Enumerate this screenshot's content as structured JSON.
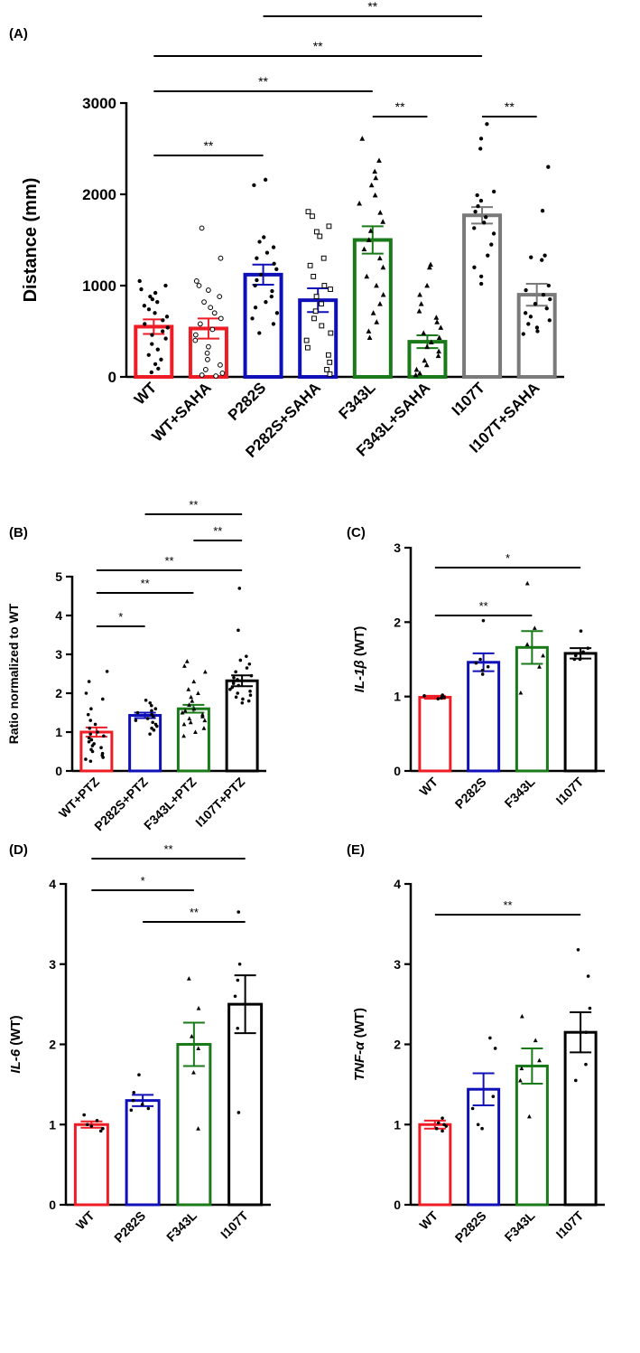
{
  "figure": {
    "panels": [
      {
        "id": "A",
        "label": "(A)"
      },
      {
        "id": "B",
        "label": "(B)"
      },
      {
        "id": "C",
        "label": "(C)"
      },
      {
        "id": "D",
        "label": "(D)"
      },
      {
        "id": "E",
        "label": "(E)"
      }
    ]
  },
  "colors": {
    "red": "#ee1c25",
    "blue": "#1010b8",
    "green": "#1a7a1a",
    "gray": "#7a7a7a",
    "black": "#000000"
  },
  "chart_data": [
    {
      "panel": "(A)",
      "type": "bar",
      "ylabel": "Distance (mm)",
      "ylim": [
        0,
        3000
      ],
      "yticks": [
        0,
        1000,
        2000,
        3000
      ],
      "categories": [
        "WT",
        "WT+SAHA",
        "P282S",
        "P282S+SAHA",
        "F343L",
        "F343L+SAHA",
        "I107T",
        "I107T+SAHA"
      ],
      "values": [
        550,
        530,
        1120,
        840,
        1500,
        385,
        1770,
        900
      ],
      "errors": [
        80,
        110,
        110,
        130,
        150,
        70,
        90,
        120
      ],
      "bar_colors": [
        "#ee1c25",
        "#ee1c25",
        "#1010b8",
        "#1010b8",
        "#1a7a1a",
        "#1a7a1a",
        "#7a7a7a",
        "#7a7a7a"
      ],
      "point_markers": [
        "circle-filled",
        "circle-open",
        "circle-filled",
        "square-open",
        "triangle",
        "triangle",
        "circle-filled",
        "circle-filled"
      ],
      "points": [
        [
          1050,
          1000,
          960,
          920,
          880,
          850,
          820,
          780,
          740,
          700,
          660,
          620,
          580,
          540,
          500,
          460,
          420,
          360,
          300,
          240,
          190,
          140,
          90,
          50
        ],
        [
          1630,
          1300,
          1050,
          1000,
          950,
          880,
          820,
          760,
          700,
          640,
          580,
          520,
          460,
          400,
          330,
          260,
          190,
          130,
          80,
          40,
          20,
          10
        ],
        [
          2160,
          2100,
          1530,
          1480,
          1420,
          1360,
          1300,
          1240,
          1180,
          1120,
          1060,
          1000,
          940,
          880,
          820,
          760,
          700,
          640,
          580,
          480
        ],
        [
          1810,
          1760,
          1650,
          1590,
          1540,
          1300,
          1220,
          1100,
          1000,
          960,
          880,
          800,
          720,
          640,
          560,
          480,
          400,
          320,
          240,
          160,
          80,
          30
        ],
        [
          2610,
          2370,
          2250,
          2180,
          2100,
          1990,
          1900,
          1800,
          1700,
          1600,
          1500,
          1400,
          1300,
          1200,
          1100,
          1000,
          900,
          800,
          700,
          600,
          500,
          430
        ],
        [
          1230,
          1200,
          1000,
          900,
          800,
          720,
          650,
          600,
          540,
          480,
          430,
          380,
          330,
          280,
          230,
          180,
          130,
          80,
          40,
          20
        ],
        [
          2770,
          2610,
          2500,
          2030,
          1990,
          1930,
          1870,
          1810,
          1750,
          1690,
          1630,
          1570,
          1450,
          1330,
          1200,
          1100,
          1020
        ],
        [
          2300,
          1820,
          1330,
          1310,
          1280,
          1000,
          950,
          900,
          850,
          800,
          750,
          700,
          660,
          620,
          580,
          540,
          500,
          470
        ]
      ],
      "significance": [
        {
          "from": 2,
          "to": 6,
          "label": "**"
        },
        {
          "from": 0,
          "to": 6,
          "label": "**"
        },
        {
          "from": 0,
          "to": 4,
          "label": "**"
        },
        {
          "from": 4,
          "to": 5,
          "label": "**"
        },
        {
          "from": 6,
          "to": 7,
          "label": "**"
        },
        {
          "from": 0,
          "to": 2,
          "label": "**"
        }
      ]
    },
    {
      "panel": "(B)",
      "type": "bar",
      "ylabel": "Ratio normalized to WT",
      "ylim": [
        0,
        5
      ],
      "yticks": [
        0,
        1,
        2,
        3,
        4,
        5
      ],
      "categories": [
        "WT+PTZ",
        "P282S+PTZ",
        "F343L+PTZ",
        "I107T+PTZ"
      ],
      "values": [
        1.0,
        1.43,
        1.6,
        2.32
      ],
      "errors": [
        0.12,
        0.07,
        0.1,
        0.14
      ],
      "bar_colors": [
        "#ee1c25",
        "#1010b8",
        "#1a7a1a",
        "#000000"
      ],
      "point_markers": [
        "circle-filled",
        "circle-filled",
        "triangle",
        "circle-filled"
      ],
      "points": [
        [
          2.56,
          2.3,
          2.0,
          1.85,
          1.6,
          1.45,
          1.3,
          1.2,
          1.1,
          1.0,
          0.95,
          0.9,
          0.85,
          0.8,
          0.75,
          0.7,
          0.65,
          0.6,
          0.55,
          0.5,
          0.45,
          0.4,
          0.35,
          0.3,
          0.25
        ],
        [
          1.82,
          1.75,
          1.68,
          1.6,
          1.55,
          1.5,
          1.45,
          1.4,
          1.35,
          1.3,
          1.25,
          1.2,
          1.15,
          1.1,
          1.05,
          0.95
        ],
        [
          2.82,
          2.7,
          2.55,
          2.3,
          2.1,
          2.0,
          1.9,
          1.8,
          1.7,
          1.6,
          1.55,
          1.5,
          1.45,
          1.4,
          1.35,
          1.3,
          1.25,
          1.2,
          1.1,
          1.0,
          0.9
        ],
        [
          4.7,
          3.62,
          2.95,
          2.85,
          2.75,
          2.65,
          2.55,
          2.45,
          2.4,
          2.35,
          2.3,
          2.25,
          2.2,
          2.15,
          2.1,
          2.05,
          2.0,
          1.95,
          1.9,
          1.85,
          1.8,
          1.75
        ]
      ],
      "significance": [
        {
          "from": 1,
          "to": 3,
          "label": "**"
        },
        {
          "from": 2,
          "to": 3,
          "label": "**"
        },
        {
          "from": 0,
          "to": 3,
          "label": "**"
        },
        {
          "from": 0,
          "to": 2,
          "label": "**"
        },
        {
          "from": 0,
          "to": 1,
          "label": "*"
        }
      ]
    },
    {
      "panel": "(C)",
      "type": "bar",
      "ylabel_italic": "IL-1β",
      "ylabel_suffix": " (WT)",
      "ylim": [
        0,
        3
      ],
      "yticks": [
        0,
        1,
        2,
        3
      ],
      "categories": [
        "WT",
        "P282S",
        "F343L",
        "I107T"
      ],
      "values": [
        0.99,
        1.46,
        1.66,
        1.58
      ],
      "errors": [
        0.02,
        0.12,
        0.22,
        0.07
      ],
      "bar_colors": [
        "#ee1c25",
        "#1010b8",
        "#1a7a1a",
        "#000000"
      ],
      "point_markers": [
        "circle-filled",
        "circle-filled",
        "triangle",
        "circle-filled"
      ],
      "points": [
        [
          1.02,
          1.0,
          0.99,
          0.98,
          0.97,
          1.01
        ],
        [
          2.02,
          1.5,
          1.45,
          1.4,
          1.35,
          1.3
        ],
        [
          2.52,
          1.92,
          1.7,
          1.55,
          1.4,
          1.05
        ],
        [
          1.88,
          1.65,
          1.6,
          1.55,
          1.5,
          1.5
        ]
      ],
      "significance": [
        {
          "from": 0,
          "to": 3,
          "label": "*"
        },
        {
          "from": 0,
          "to": 2,
          "label": "**"
        }
      ]
    },
    {
      "panel": "(D)",
      "type": "bar",
      "ylabel_italic": "IL-6",
      "ylabel_suffix": " (WT)",
      "ylim": [
        0,
        4
      ],
      "yticks": [
        0,
        1,
        2,
        3,
        4
      ],
      "categories": [
        "WT",
        "P282S",
        "F343L",
        "I107T"
      ],
      "values": [
        1.0,
        1.3,
        2.0,
        2.5
      ],
      "errors": [
        0.04,
        0.07,
        0.27,
        0.36
      ],
      "bar_colors": [
        "#ee1c25",
        "#1010b8",
        "#1a7a1a",
        "#000000"
      ],
      "point_markers": [
        "circle-filled",
        "circle-filled",
        "triangle",
        "circle-filled"
      ],
      "points": [
        [
          1.12,
          1.05,
          1.0,
          0.98,
          0.95,
          0.92
        ],
        [
          1.62,
          1.4,
          1.3,
          1.25,
          1.2,
          1.18
        ],
        [
          2.82,
          2.45,
          2.1,
          1.95,
          1.65,
          0.95
        ],
        [
          3.65,
          3.0,
          2.8,
          2.6,
          2.2,
          1.15
        ]
      ],
      "significance": [
        {
          "from": 0,
          "to": 3,
          "label": "**"
        },
        {
          "from": 0,
          "to": 2,
          "label": "*"
        },
        {
          "from": 1,
          "to": 3,
          "label": "**"
        }
      ]
    },
    {
      "panel": "(E)",
      "type": "bar",
      "ylabel_italic": "TNF-α",
      "ylabel_suffix": " (WT)",
      "ylim": [
        0,
        4
      ],
      "yticks": [
        0,
        1,
        2,
        3,
        4
      ],
      "categories": [
        "WT",
        "P282S",
        "F343L",
        "I107T"
      ],
      "values": [
        1.0,
        1.44,
        1.73,
        2.15
      ],
      "errors": [
        0.05,
        0.2,
        0.22,
        0.25
      ],
      "bar_colors": [
        "#ee1c25",
        "#1010b8",
        "#1a7a1a",
        "#000000"
      ],
      "point_markers": [
        "circle-filled",
        "circle-filled",
        "triangle",
        "circle-filled"
      ],
      "points": [
        [
          1.08,
          1.02,
          1.0,
          0.98,
          0.95,
          0.92
        ],
        [
          2.08,
          1.95,
          1.35,
          1.2,
          1.0,
          0.95
        ],
        [
          2.35,
          2.05,
          1.8,
          1.7,
          1.55,
          1.1
        ],
        [
          3.18,
          2.85,
          2.45,
          2.15,
          1.75,
          1.55
        ]
      ],
      "significance": [
        {
          "from": 0,
          "to": 3,
          "label": "**"
        }
      ]
    }
  ]
}
